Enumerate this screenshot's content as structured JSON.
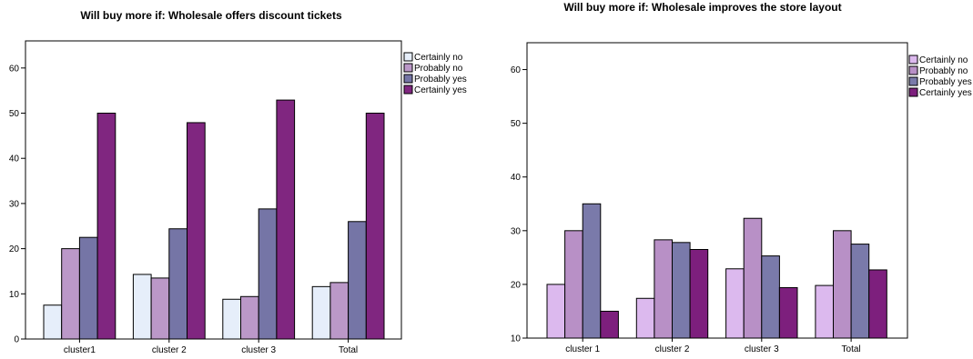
{
  "legend_colors": [
    "#e6eefa",
    "#bb98c8",
    "#7575a6",
    "#802680"
  ],
  "legend_colors_right": [
    "#dcb9ee",
    "#b890c6",
    "#7a7aaa",
    "#7d1f7d"
  ],
  "chart_data": [
    {
      "type": "bar",
      "title": "Will buy more if: Wholesale offers discount tickets",
      "categories": [
        "cluster1",
        "cluster 2",
        "cluster 3",
        "Total"
      ],
      "series": [
        {
          "name": "Certainly no",
          "values": [
            7.5,
            14.3,
            8.8,
            11.6
          ]
        },
        {
          "name": "Probably no",
          "values": [
            20.0,
            13.5,
            9.4,
            12.5
          ]
        },
        {
          "name": "Probably yes",
          "values": [
            22.5,
            24.4,
            28.8,
            26.0
          ]
        },
        {
          "name": "Certainly yes",
          "values": [
            50.0,
            47.9,
            52.9,
            50.0
          ]
        }
      ],
      "yticks": [
        "0",
        "10",
        "20",
        "30",
        "40",
        "50",
        "60"
      ],
      "ylim": [
        0,
        66
      ],
      "legend_position": "right"
    },
    {
      "type": "bar",
      "title": "Will buy more if: Wholesale improves the store layout",
      "categories": [
        "cluster 1",
        "cluster 2",
        "cluster 3",
        "Total"
      ],
      "series": [
        {
          "name": "Certainly no",
          "values": [
            20.0,
            17.4,
            22.9,
            19.8
          ]
        },
        {
          "name": "Probably no",
          "values": [
            30.0,
            28.3,
            32.3,
            30.0
          ]
        },
        {
          "name": "Probably yes",
          "values": [
            35.0,
            27.8,
            25.3,
            27.5
          ]
        },
        {
          "name": "Certainly yes",
          "values": [
            15.0,
            26.5,
            19.4,
            22.7
          ]
        }
      ],
      "yticks": [
        "10",
        "20",
        "30",
        "40",
        "50",
        "60"
      ],
      "ylim": [
        10,
        65
      ],
      "legend_position": "right"
    }
  ]
}
